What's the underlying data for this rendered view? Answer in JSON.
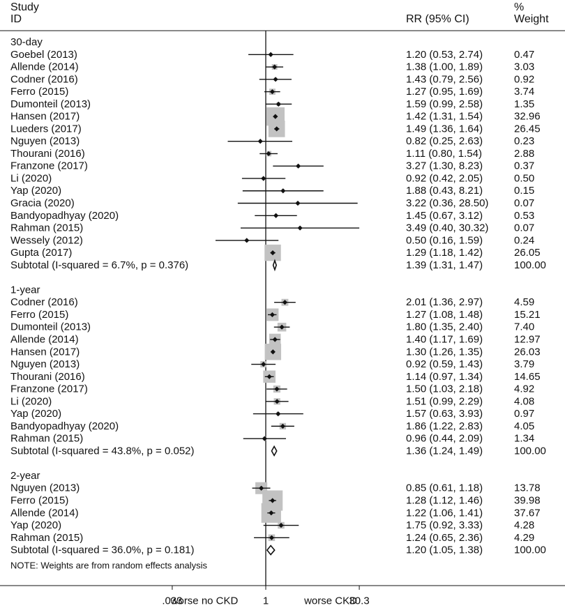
{
  "header": {
    "study_line1": "Study",
    "study_line2": "ID",
    "rr_label": "RR (95% CI)",
    "weight_line1": "%",
    "weight_line2": "Weight"
  },
  "chart_data": {
    "type": "forest",
    "scale": "log",
    "xlim": [
      0.033,
      30.3
    ],
    "xticks": [
      ".033",
      "1",
      "30.3"
    ],
    "xtick_values": [
      0.033,
      1,
      30.3
    ],
    "axis_annotation_left": "worse no CKD",
    "axis_annotation_right": "worse CKD",
    "note": "NOTE: Weights are from random effects analysis",
    "groups": [
      {
        "label": "30-day",
        "studies": [
          {
            "study": "Goebel (2013)",
            "rr": 1.2,
            "lo": 0.53,
            "hi": 2.74,
            "ci_text": "1.20 (0.53, 2.74)",
            "weight": "0.47"
          },
          {
            "study": "Allende (2014)",
            "rr": 1.38,
            "lo": 1.0,
            "hi": 1.89,
            "ci_text": "1.38 (1.00, 1.89)",
            "weight": "3.03"
          },
          {
            "study": "Codner (2016)",
            "rr": 1.43,
            "lo": 0.79,
            "hi": 2.56,
            "ci_text": "1.43 (0.79, 2.56)",
            "weight": "0.92"
          },
          {
            "study": "Ferro (2015)",
            "rr": 1.27,
            "lo": 0.95,
            "hi": 1.69,
            "ci_text": "1.27 (0.95, 1.69)",
            "weight": "3.74"
          },
          {
            "study": "Dumonteil (2013)",
            "rr": 1.59,
            "lo": 0.99,
            "hi": 2.58,
            "ci_text": "1.59 (0.99, 2.58)",
            "weight": "1.35"
          },
          {
            "study": "Hansen (2017)",
            "rr": 1.42,
            "lo": 1.31,
            "hi": 1.54,
            "ci_text": "1.42 (1.31, 1.54)",
            "weight": "32.96"
          },
          {
            "study": "Lueders (2017)",
            "rr": 1.49,
            "lo": 1.36,
            "hi": 1.64,
            "ci_text": "1.49 (1.36, 1.64)",
            "weight": "26.45"
          },
          {
            "study": "Nguyen (2013)",
            "rr": 0.82,
            "lo": 0.25,
            "hi": 2.63,
            "ci_text": "0.82 (0.25, 2.63)",
            "weight": "0.23"
          },
          {
            "study": "Thourani (2016)",
            "rr": 1.11,
            "lo": 0.8,
            "hi": 1.54,
            "ci_text": "1.11 (0.80, 1.54)",
            "weight": "2.88"
          },
          {
            "study": "Franzone (2017)",
            "rr": 3.27,
            "lo": 1.3,
            "hi": 8.23,
            "ci_text": "3.27 (1.30, 8.23)",
            "weight": "0.37"
          },
          {
            "study": "Li (2020)",
            "rr": 0.92,
            "lo": 0.42,
            "hi": 2.05,
            "ci_text": "0.92 (0.42, 2.05)",
            "weight": "0.50"
          },
          {
            "study": "Yap (2020)",
            "rr": 1.88,
            "lo": 0.43,
            "hi": 8.21,
            "ci_text": "1.88 (0.43, 8.21)",
            "weight": "0.15"
          },
          {
            "study": "Gracia (2020)",
            "rr": 3.22,
            "lo": 0.36,
            "hi": 28.5,
            "ci_text": "3.22 (0.36, 28.50)",
            "weight": "0.07"
          },
          {
            "study": "Bandyopadhyay (2020)",
            "rr": 1.45,
            "lo": 0.67,
            "hi": 3.12,
            "ci_text": "1.45 (0.67, 3.12)",
            "weight": "0.53"
          },
          {
            "study": "Rahman (2015)",
            "rr": 3.49,
            "lo": 0.4,
            "hi": 30.32,
            "ci_text": "3.49 (0.40, 30.32)",
            "weight": "0.07"
          },
          {
            "study": "Wessely (2012)",
            "rr": 0.5,
            "lo": 0.16,
            "hi": 1.59,
            "ci_text": "0.50 (0.16, 1.59)",
            "weight": "0.24"
          },
          {
            "study": "Gupta (2017)",
            "rr": 1.29,
            "lo": 1.18,
            "hi": 1.42,
            "ci_text": "1.29 (1.18, 1.42)",
            "weight": "26.05"
          }
        ],
        "subtotal": {
          "label": "Subtotal  (I-squared = 6.7%, p = 0.376)",
          "rr": 1.39,
          "lo": 1.31,
          "hi": 1.47,
          "ci_text": "1.39 (1.31, 1.47)",
          "weight": "100.00"
        }
      },
      {
        "label": "1-year",
        "studies": [
          {
            "study": "Codner (2016)",
            "rr": 2.01,
            "lo": 1.36,
            "hi": 2.97,
            "ci_text": "2.01 (1.36, 2.97)",
            "weight": "4.59"
          },
          {
            "study": "Ferro (2015)",
            "rr": 1.27,
            "lo": 1.08,
            "hi": 1.48,
            "ci_text": "1.27 (1.08, 1.48)",
            "weight": "15.21"
          },
          {
            "study": "Dumonteil (2013)",
            "rr": 1.8,
            "lo": 1.35,
            "hi": 2.4,
            "ci_text": "1.80 (1.35, 2.40)",
            "weight": "7.40"
          },
          {
            "study": "Allende (2014)",
            "rr": 1.4,
            "lo": 1.17,
            "hi": 1.69,
            "ci_text": "1.40 (1.17, 1.69)",
            "weight": "12.97"
          },
          {
            "study": "Hansen (2017)",
            "rr": 1.3,
            "lo": 1.26,
            "hi": 1.35,
            "ci_text": "1.30 (1.26, 1.35)",
            "weight": "26.03"
          },
          {
            "study": "Nguyen (2013)",
            "rr": 0.92,
            "lo": 0.59,
            "hi": 1.43,
            "ci_text": "0.92 (0.59, 1.43)",
            "weight": "3.79"
          },
          {
            "study": "Thourani (2016)",
            "rr": 1.14,
            "lo": 0.97,
            "hi": 1.34,
            "ci_text": "1.14 (0.97, 1.34)",
            "weight": "14.65"
          },
          {
            "study": "Franzone (2017)",
            "rr": 1.5,
            "lo": 1.03,
            "hi": 2.18,
            "ci_text": "1.50 (1.03, 2.18)",
            "weight": "4.92"
          },
          {
            "study": "Li (2020)",
            "rr": 1.51,
            "lo": 0.99,
            "hi": 2.29,
            "ci_text": "1.51 (0.99, 2.29)",
            "weight": "4.08"
          },
          {
            "study": "Yap (2020)",
            "rr": 1.57,
            "lo": 0.63,
            "hi": 3.93,
            "ci_text": "1.57 (0.63, 3.93)",
            "weight": "0.97"
          },
          {
            "study": "Bandyopadhyay (2020)",
            "rr": 1.86,
            "lo": 1.22,
            "hi": 2.83,
            "ci_text": "1.86 (1.22, 2.83)",
            "weight": "4.05"
          },
          {
            "study": "Rahman (2015)",
            "rr": 0.96,
            "lo": 0.44,
            "hi": 2.09,
            "ci_text": "0.96 (0.44, 2.09)",
            "weight": "1.34"
          }
        ],
        "subtotal": {
          "label": "Subtotal  (I-squared = 43.8%, p = 0.052)",
          "rr": 1.36,
          "lo": 1.24,
          "hi": 1.49,
          "ci_text": "1.36 (1.24, 1.49)",
          "weight": "100.00"
        }
      },
      {
        "label": "2-year",
        "studies": [
          {
            "study": "Nguyen (2013)",
            "rr": 0.85,
            "lo": 0.61,
            "hi": 1.18,
            "ci_text": "0.85 (0.61, 1.18)",
            "weight": "13.78"
          },
          {
            "study": "Ferro (2015)",
            "rr": 1.28,
            "lo": 1.12,
            "hi": 1.46,
            "ci_text": "1.28 (1.12, 1.46)",
            "weight": "39.98"
          },
          {
            "study": "Allende (2014)",
            "rr": 1.22,
            "lo": 1.06,
            "hi": 1.41,
            "ci_text": "1.22 (1.06, 1.41)",
            "weight": "37.67"
          },
          {
            "study": "Yap (2020)",
            "rr": 1.75,
            "lo": 0.92,
            "hi": 3.33,
            "ci_text": "1.75 (0.92, 3.33)",
            "weight": "4.28"
          },
          {
            "study": "Rahman (2015)",
            "rr": 1.24,
            "lo": 0.65,
            "hi": 2.36,
            "ci_text": "1.24 (0.65, 2.36)",
            "weight": "4.29"
          }
        ],
        "subtotal": {
          "label": "Subtotal  (I-squared = 36.0%, p = 0.181)",
          "rr": 1.2,
          "lo": 1.05,
          "hi": 1.38,
          "ci_text": "1.20 (1.05, 1.38)",
          "weight": "100.00"
        }
      }
    ],
    "colors": {
      "weight_box": "#c2c2c2",
      "point": "#111111",
      "line": "#111111",
      "background": "#ffffff"
    }
  }
}
